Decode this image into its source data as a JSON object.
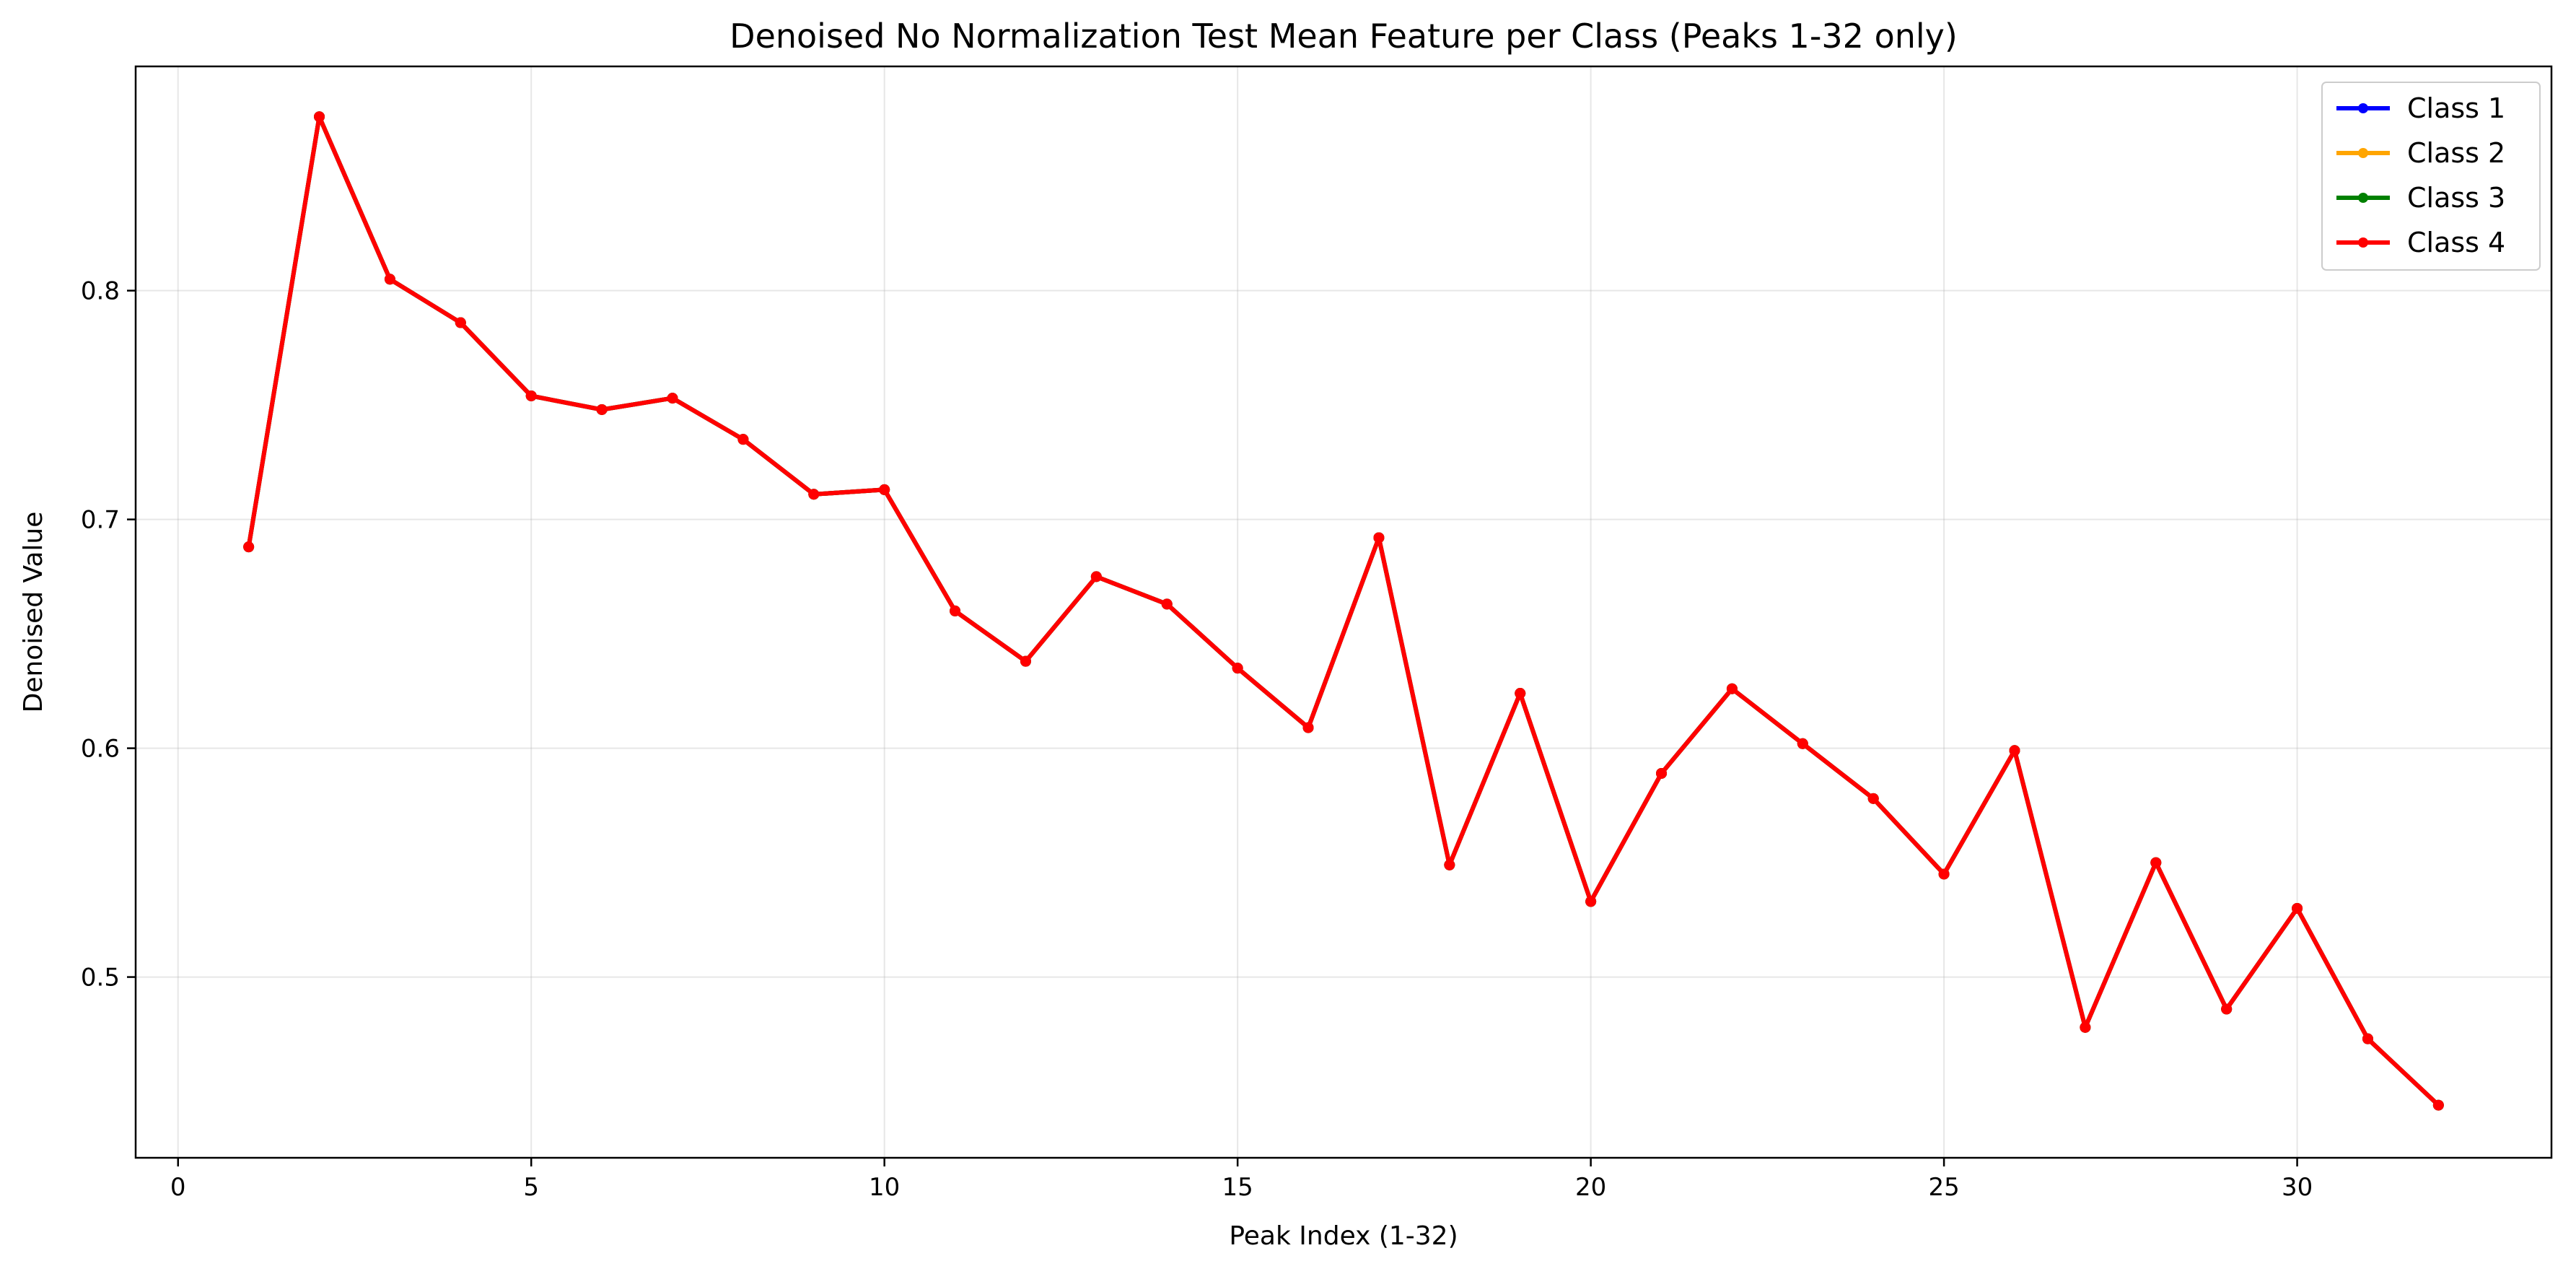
{
  "chart_data": {
    "type": "line",
    "title": "Denoised No Normalization Test Mean Feature per Class (Peaks 1-32 only)",
    "xlabel": "Peak Index (1-32)",
    "ylabel": "Denoised Value",
    "xlim": [
      -0.6,
      33.6
    ],
    "ylim": [
      0.421,
      0.898
    ],
    "xticks": [
      0,
      5,
      10,
      15,
      20,
      25,
      30
    ],
    "xtick_labels": [
      "0",
      "5",
      "10",
      "15",
      "20",
      "25",
      "30"
    ],
    "yticks": [
      0.5,
      0.6,
      0.7,
      0.8
    ],
    "ytick_labels": [
      "0.5",
      "0.6",
      "0.7",
      "0.8"
    ],
    "grid": true,
    "legend_position": "top-right",
    "x": [
      1,
      2,
      3,
      4,
      5,
      6,
      7,
      8,
      9,
      10,
      11,
      12,
      13,
      14,
      15,
      16,
      17,
      18,
      19,
      20,
      21,
      22,
      23,
      24,
      25,
      26,
      27,
      28,
      29,
      30,
      31,
      32
    ],
    "series": [
      {
        "name": "Class 1",
        "color": "#0000ff",
        "values": [
          0.688,
          0.876,
          0.805,
          0.786,
          0.754,
          0.748,
          0.753,
          0.735,
          0.711,
          0.713,
          0.66,
          0.638,
          0.675,
          0.663,
          0.635,
          0.609,
          0.692,
          0.549,
          0.624,
          0.533,
          0.589,
          0.626,
          0.602,
          0.578,
          0.545,
          0.599,
          0.478,
          0.55,
          0.486,
          0.53,
          0.473,
          0.444
        ]
      },
      {
        "name": "Class 2",
        "color": "#ffa500",
        "values": [
          0.688,
          0.876,
          0.805,
          0.786,
          0.754,
          0.748,
          0.753,
          0.735,
          0.711,
          0.713,
          0.66,
          0.638,
          0.675,
          0.663,
          0.635,
          0.609,
          0.692,
          0.549,
          0.624,
          0.533,
          0.589,
          0.626,
          0.602,
          0.578,
          0.545,
          0.599,
          0.478,
          0.55,
          0.486,
          0.53,
          0.473,
          0.444
        ]
      },
      {
        "name": "Class 3",
        "color": "#008000",
        "values": [
          0.688,
          0.876,
          0.805,
          0.786,
          0.754,
          0.748,
          0.753,
          0.735,
          0.711,
          0.713,
          0.66,
          0.638,
          0.675,
          0.663,
          0.635,
          0.609,
          0.692,
          0.549,
          0.624,
          0.533,
          0.589,
          0.626,
          0.602,
          0.578,
          0.545,
          0.599,
          0.478,
          0.55,
          0.486,
          0.53,
          0.473,
          0.444
        ]
      },
      {
        "name": "Class 4",
        "color": "#ff0000",
        "values": [
          0.688,
          0.876,
          0.805,
          0.786,
          0.754,
          0.748,
          0.753,
          0.735,
          0.711,
          0.713,
          0.66,
          0.638,
          0.675,
          0.663,
          0.635,
          0.609,
          0.692,
          0.549,
          0.624,
          0.533,
          0.589,
          0.626,
          0.602,
          0.578,
          0.545,
          0.599,
          0.478,
          0.55,
          0.486,
          0.53,
          0.473,
          0.444
        ]
      }
    ]
  }
}
